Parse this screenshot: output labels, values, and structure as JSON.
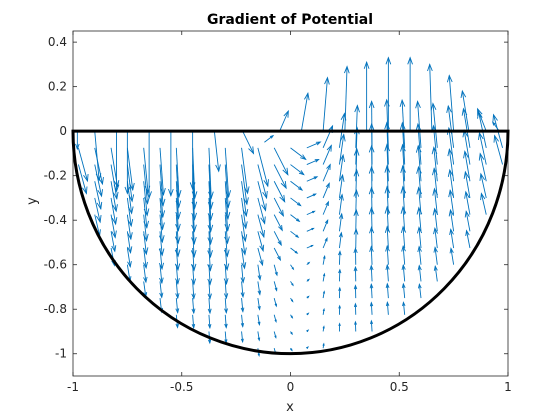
{
  "chart_data": {
    "type": "quiver",
    "title": "Gradient of Potential",
    "xlabel": "x",
    "ylabel": "y",
    "xlim": [
      -1,
      1
    ],
    "ylim": [
      -1.1,
      0.45
    ],
    "xticks": [
      -1,
      -0.5,
      0,
      0.5,
      1
    ],
    "xtick_labels": [
      "-1",
      "-0.5",
      "0",
      "0.5",
      "1"
    ],
    "yticks": [
      0.4,
      0.2,
      0,
      -0.2,
      -0.4,
      -0.6,
      -0.8,
      -1
    ],
    "ytick_labels": [
      "0.4",
      "0.2",
      "0",
      "-0.2",
      "-0.4",
      "-0.6",
      "-0.8",
      "-1"
    ],
    "grid": false,
    "arrow_color": "#0072BD",
    "boundary_color": "#000000",
    "boundary": "semicircle x^2 + y^2 = 1, y <= 0, closed by segment y = 0 from x = -1 to x = 1",
    "grid_x_range": [
      -0.975,
      0.975
    ],
    "grid_x_step": 0.075,
    "grid_y_range": [
      -0.975,
      -0.075
    ],
    "grid_y_step": 0.075,
    "max_arrow_length_data": 0.33,
    "top_row_arrows": [
      {
        "x": -0.98,
        "y": 0,
        "u": 0.0,
        "v": -0.08
      },
      {
        "x": -0.9,
        "y": 0,
        "u": 0.02,
        "v": -0.22
      },
      {
        "x": -0.8,
        "y": 0,
        "u": 0.0,
        "v": -0.27
      },
      {
        "x": -0.75,
        "y": 0,
        "u": 0.0,
        "v": -0.28
      },
      {
        "x": -0.65,
        "y": 0,
        "u": 0.0,
        "v": -0.3
      },
      {
        "x": -0.55,
        "y": 0,
        "u": 0.0,
        "v": -0.29
      },
      {
        "x": -0.45,
        "y": 0,
        "u": 0.0,
        "v": -0.26
      },
      {
        "x": -0.35,
        "y": 0,
        "u": 0.02,
        "v": -0.18
      },
      {
        "x": -0.22,
        "y": 0,
        "u": 0.05,
        "v": -0.1
      },
      {
        "x": -0.12,
        "y": -0.05,
        "u": 0.04,
        "v": 0.03
      },
      {
        "x": -0.05,
        "y": 0,
        "u": 0.04,
        "v": 0.09
      },
      {
        "x": 0.05,
        "y": 0,
        "u": 0.03,
        "v": 0.17
      },
      {
        "x": 0.15,
        "y": 0,
        "u": 0.02,
        "v": 0.24
      },
      {
        "x": 0.25,
        "y": 0,
        "u": 0.01,
        "v": 0.29
      },
      {
        "x": 0.35,
        "y": 0,
        "u": 0.0,
        "v": 0.31
      },
      {
        "x": 0.45,
        "y": 0,
        "u": 0.0,
        "v": 0.33
      },
      {
        "x": 0.55,
        "y": 0,
        "u": 0.0,
        "v": 0.33
      },
      {
        "x": 0.65,
        "y": 0,
        "u": -0.01,
        "v": 0.3
      },
      {
        "x": 0.75,
        "y": 0,
        "u": -0.02,
        "v": 0.25
      },
      {
        "x": 0.82,
        "y": 0,
        "u": -0.03,
        "v": 0.18
      },
      {
        "x": 0.9,
        "y": 0,
        "u": -0.04,
        "v": 0.1
      },
      {
        "x": 0.96,
        "y": 0,
        "u": -0.03,
        "v": 0.04
      }
    ]
  }
}
